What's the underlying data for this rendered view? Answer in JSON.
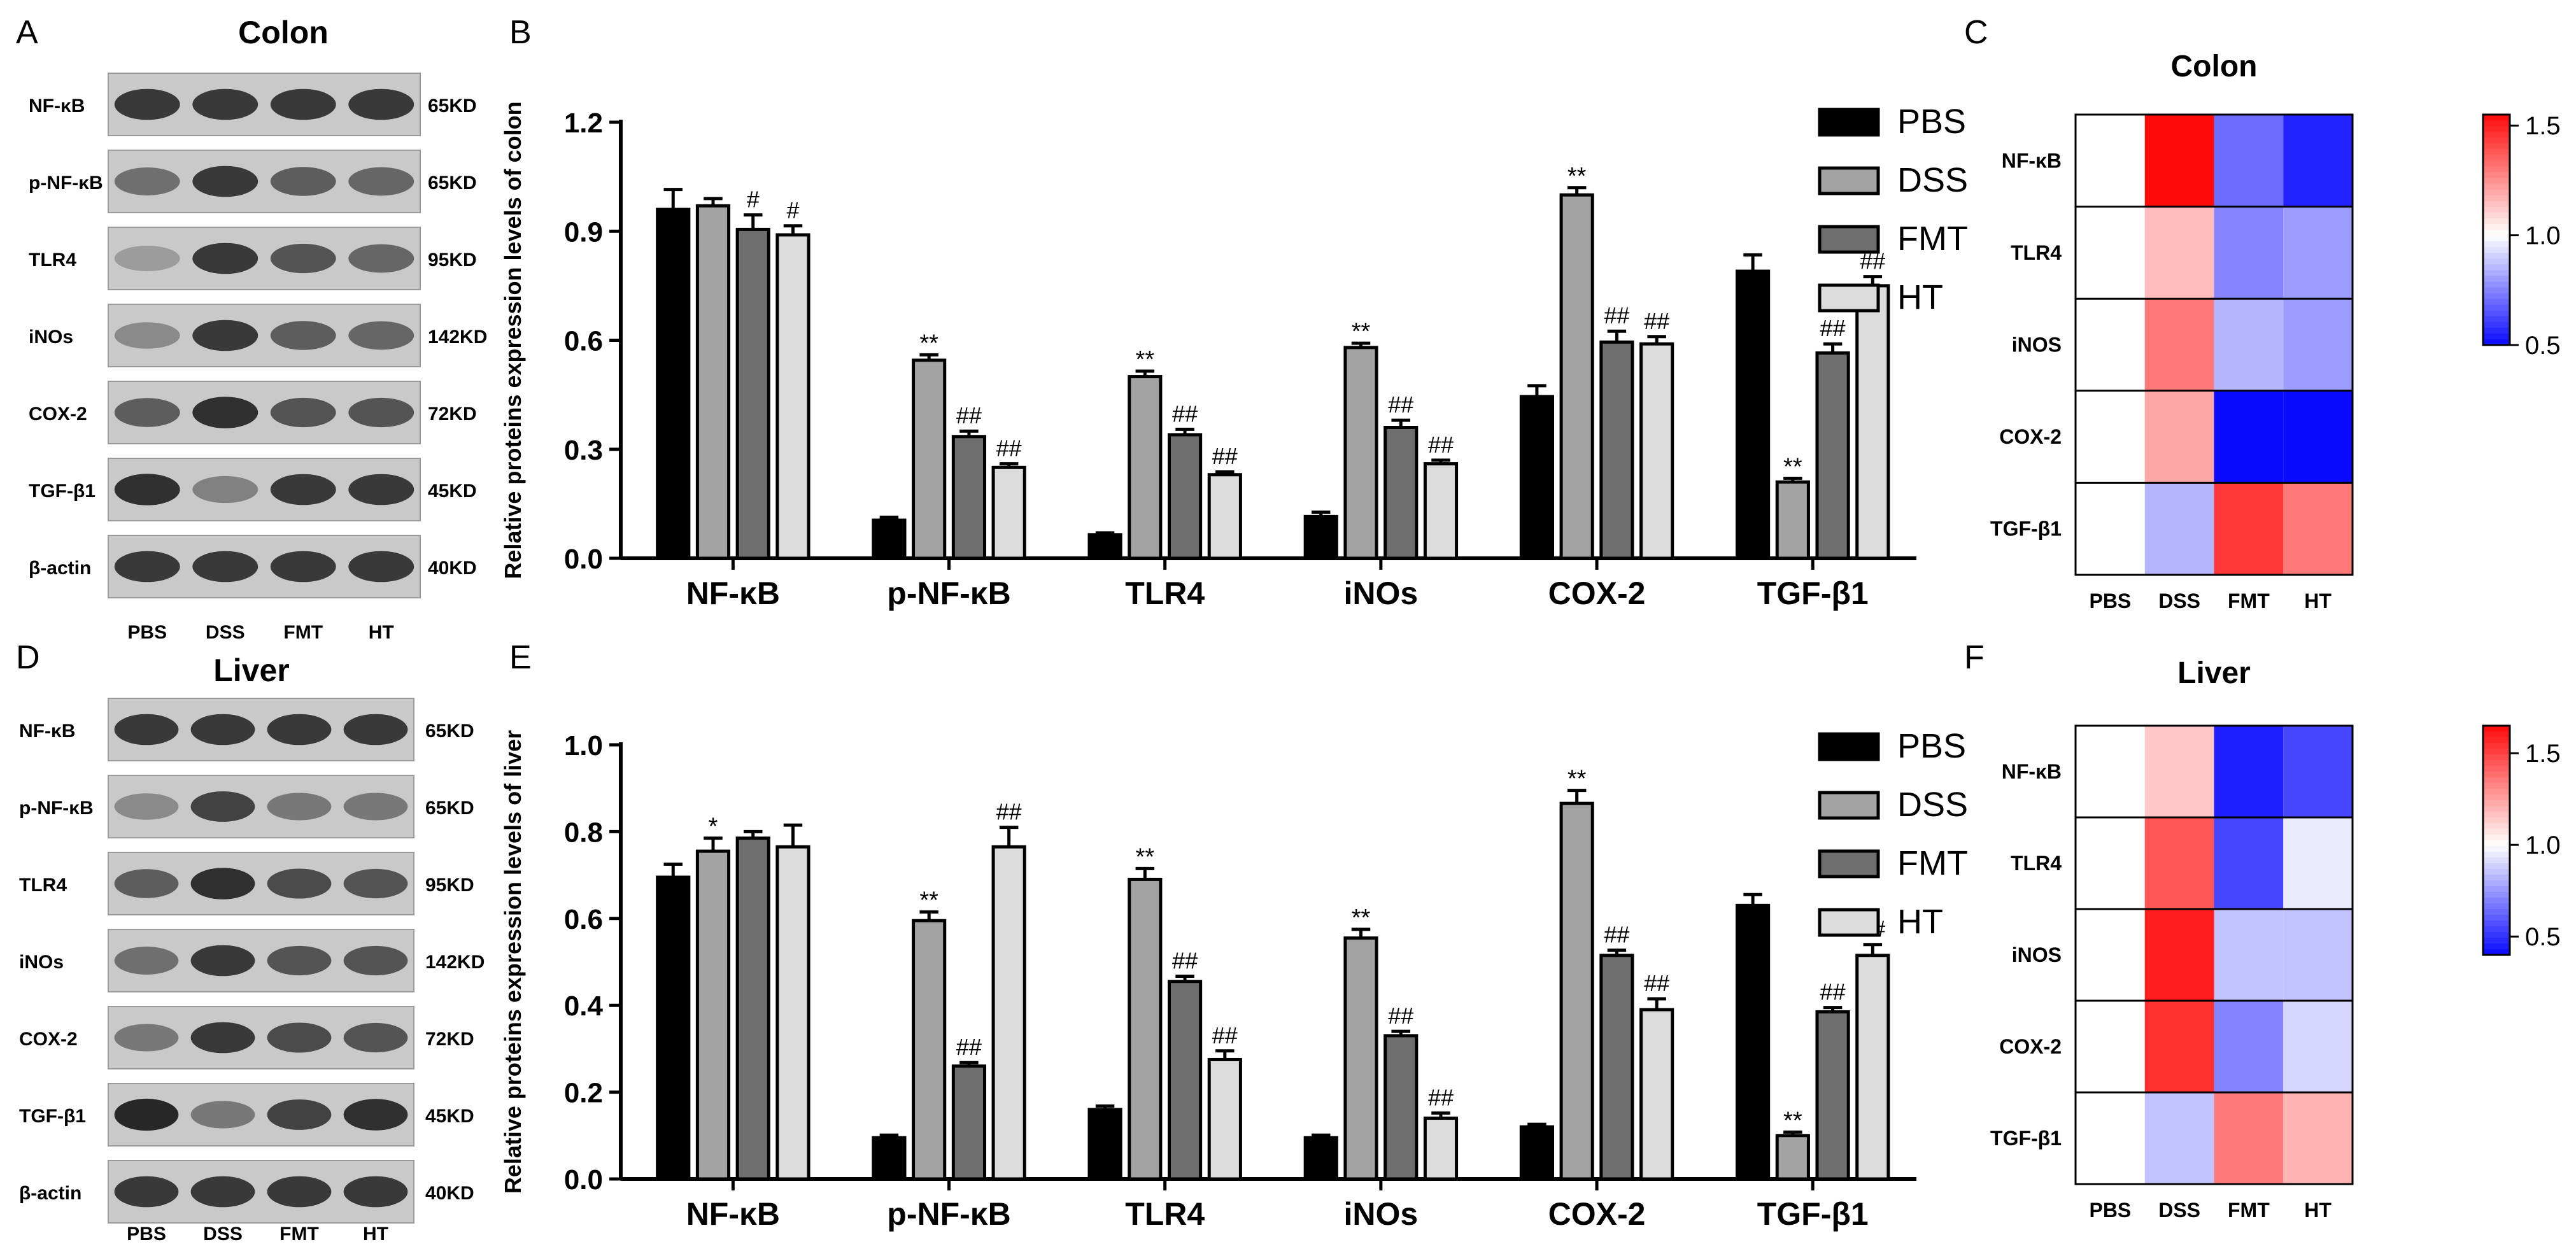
{
  "figure": {
    "panels": {
      "A": "A",
      "B": "B",
      "C": "C",
      "D": "D",
      "E": "E",
      "F": "F"
    },
    "western": {
      "colon": {
        "title": "Colon",
        "lanes": [
          "PBS",
          "DSS",
          "FMT",
          "HT"
        ],
        "proteins": [
          {
            "name": "NF-κB",
            "kd": "65KD",
            "intensity": [
              0.85,
              0.85,
              0.85,
              0.85
            ]
          },
          {
            "name": "p-NF-κB",
            "kd": "65KD",
            "intensity": [
              0.55,
              0.85,
              0.65,
              0.6
            ]
          },
          {
            "name": "TLR4",
            "kd": "95KD",
            "intensity": [
              0.3,
              0.85,
              0.7,
              0.6
            ]
          },
          {
            "name": "iNOs",
            "kd": "142KD",
            "intensity": [
              0.4,
              0.85,
              0.65,
              0.6
            ]
          },
          {
            "name": "COX-2",
            "kd": "72KD",
            "intensity": [
              0.65,
              0.9,
              0.7,
              0.7
            ]
          },
          {
            "name": "TGF-β1",
            "kd": "45KD",
            "intensity": [
              0.9,
              0.45,
              0.85,
              0.85
            ]
          },
          {
            "name": "β-actin",
            "kd": "40KD",
            "intensity": [
              0.85,
              0.85,
              0.85,
              0.85
            ]
          }
        ]
      },
      "liver": {
        "title": "Liver",
        "lanes": [
          "PBS",
          "DSS",
          "FMT",
          "HT"
        ],
        "proteins": [
          {
            "name": "NF-κB",
            "kd": "65KD",
            "intensity": [
              0.85,
              0.85,
              0.85,
              0.85
            ]
          },
          {
            "name": "p-NF-κB",
            "kd": "65KD",
            "intensity": [
              0.4,
              0.8,
              0.5,
              0.5
            ]
          },
          {
            "name": "TLR4",
            "kd": "95KD",
            "intensity": [
              0.65,
              0.9,
              0.75,
              0.7
            ]
          },
          {
            "name": "iNOs",
            "kd": "142KD",
            "intensity": [
              0.55,
              0.85,
              0.7,
              0.7
            ]
          },
          {
            "name": "COX-2",
            "kd": "72KD",
            "intensity": [
              0.5,
              0.85,
              0.75,
              0.7
            ]
          },
          {
            "name": "TGF-β1",
            "kd": "45KD",
            "intensity": [
              0.95,
              0.5,
              0.8,
              0.9
            ]
          },
          {
            "name": "β-actin",
            "kd": "40KD",
            "intensity": [
              0.85,
              0.85,
              0.85,
              0.85
            ]
          }
        ]
      }
    },
    "legend": [
      "PBS",
      "DSS",
      "FMT",
      "HT"
    ]
  },
  "chart_data": [
    {
      "id": "B",
      "type": "bar",
      "ylabel": "Relative proteins expression levels of colon",
      "categories": [
        "NF-κB",
        "p-NF-κB",
        "TLR4",
        "iNOs",
        "COX-2",
        "TGF-β1"
      ],
      "ylim": [
        0,
        1.2
      ],
      "yticks": [
        "0.0",
        "0.3",
        "0.6",
        "0.9",
        "1.2"
      ],
      "colors": [
        "#000000",
        "#a3a3a3",
        "#6e6e6e",
        "#dcdcdc"
      ],
      "series": [
        {
          "name": "PBS",
          "values": [
            0.96,
            0.105,
            0.065,
            0.115,
            0.445,
            0.79
          ],
          "errors": [
            0.055,
            0.008,
            0.005,
            0.012,
            0.03,
            0.045
          ]
        },
        {
          "name": "DSS",
          "values": [
            0.97,
            0.545,
            0.5,
            0.58,
            1.0,
            0.21
          ],
          "errors": [
            0.02,
            0.015,
            0.015,
            0.012,
            0.02,
            0.01
          ]
        },
        {
          "name": "FMT",
          "values": [
            0.905,
            0.335,
            0.34,
            0.36,
            0.595,
            0.565
          ],
          "errors": [
            0.04,
            0.015,
            0.015,
            0.02,
            0.03,
            0.025
          ]
        },
        {
          "name": "HT",
          "values": [
            0.89,
            0.25,
            0.23,
            0.26,
            0.59,
            0.75
          ],
          "errors": [
            0.025,
            0.01,
            0.008,
            0.01,
            0.02,
            0.025
          ]
        }
      ],
      "annotations": [
        [
          "",
          "",
          "",
          ""
        ],
        [
          "",
          "**",
          "##",
          "##"
        ],
        [
          "",
          "**",
          "##",
          "##"
        ],
        [
          "",
          "**",
          "##",
          "##"
        ],
        [
          "",
          "**",
          "##",
          "##"
        ],
        [
          "",
          "**",
          "##",
          "##"
        ]
      ],
      "annotations_extra": {
        "NF-κB": [
          "",
          "",
          "#",
          "#"
        ]
      }
    },
    {
      "id": "E",
      "type": "bar",
      "ylabel": "Relative proteins expression levels of liver",
      "categories": [
        "NF-κB",
        "p-NF-κB",
        "TLR4",
        "iNOs",
        "COX-2",
        "TGF-β1"
      ],
      "ylim": [
        0,
        1.0
      ],
      "yticks": [
        "0.0",
        "0.2",
        "0.4",
        "0.6",
        "0.8",
        "1.0"
      ],
      "colors": [
        "#000000",
        "#a3a3a3",
        "#6e6e6e",
        "#dcdcdc"
      ],
      "series": [
        {
          "name": "PBS",
          "values": [
            0.695,
            0.095,
            0.16,
            0.095,
            0.12,
            0.63
          ],
          "errors": [
            0.03,
            0.006,
            0.008,
            0.006,
            0.006,
            0.025
          ]
        },
        {
          "name": "DSS",
          "values": [
            0.755,
            0.595,
            0.69,
            0.555,
            0.865,
            0.1
          ],
          "errors": [
            0.03,
            0.02,
            0.025,
            0.02,
            0.03,
            0.008
          ]
        },
        {
          "name": "FMT",
          "values": [
            0.785,
            0.26,
            0.455,
            0.33,
            0.515,
            0.385
          ],
          "errors": [
            0.015,
            0.008,
            0.012,
            0.01,
            0.012,
            0.01
          ]
        },
        {
          "name": "HT",
          "values": [
            0.765,
            0.765,
            0.275,
            0.14,
            0.39,
            0.515
          ],
          "errors": [
            0.05,
            0.045,
            0.02,
            0.012,
            0.025,
            0.025
          ]
        }
      ],
      "annotations": [
        [
          "",
          "*",
          "",
          ""
        ],
        [
          "",
          "**",
          "##",
          "##"
        ],
        [
          "",
          "**",
          "##",
          "##"
        ],
        [
          "",
          "**",
          "##",
          "##"
        ],
        [
          "",
          "**",
          "##",
          "##"
        ],
        [
          "",
          "**",
          "##",
          "##"
        ]
      ]
    },
    {
      "id": "C",
      "type": "heatmap",
      "title": "Colon",
      "rows": [
        "NF-κB",
        "TLR4",
        "iNOS",
        "COX-2",
        "TGF-β1"
      ],
      "columns": [
        "PBS",
        "DSS",
        "FMT",
        "HT"
      ],
      "values": [
        [
          1.0,
          1.55,
          0.7,
          0.55
        ],
        [
          1.0,
          1.15,
          0.75,
          0.8
        ],
        [
          1.0,
          1.3,
          0.85,
          0.8
        ],
        [
          1.0,
          1.2,
          0.5,
          0.5
        ],
        [
          1.0,
          0.85,
          1.45,
          1.3
        ]
      ],
      "colorbar": {
        "min": 0.5,
        "max": 1.55,
        "ticks": [
          "1.5",
          "1.0",
          "0.5"
        ],
        "tick_values": [
          1.5,
          1.0,
          0.5
        ]
      }
    },
    {
      "id": "F",
      "type": "heatmap",
      "title": "Liver",
      "rows": [
        "NF-κB",
        "TLR4",
        "iNOS",
        "COX-2",
        "TGF-β1"
      ],
      "columns": [
        "PBS",
        "DSS",
        "FMT",
        "HT"
      ],
      "values": [
        [
          1.0,
          1.15,
          0.45,
          0.55
        ],
        [
          1.0,
          1.45,
          0.55,
          0.95
        ],
        [
          1.0,
          1.6,
          0.85,
          0.85
        ],
        [
          1.0,
          1.55,
          0.7,
          0.9
        ],
        [
          1.0,
          0.85,
          1.35,
          1.2
        ]
      ],
      "colorbar": {
        "min": 0.4,
        "max": 1.65,
        "ticks": [
          "1.5",
          "1.0",
          "0.5"
        ],
        "tick_values": [
          1.5,
          1.0,
          0.5
        ]
      }
    }
  ]
}
